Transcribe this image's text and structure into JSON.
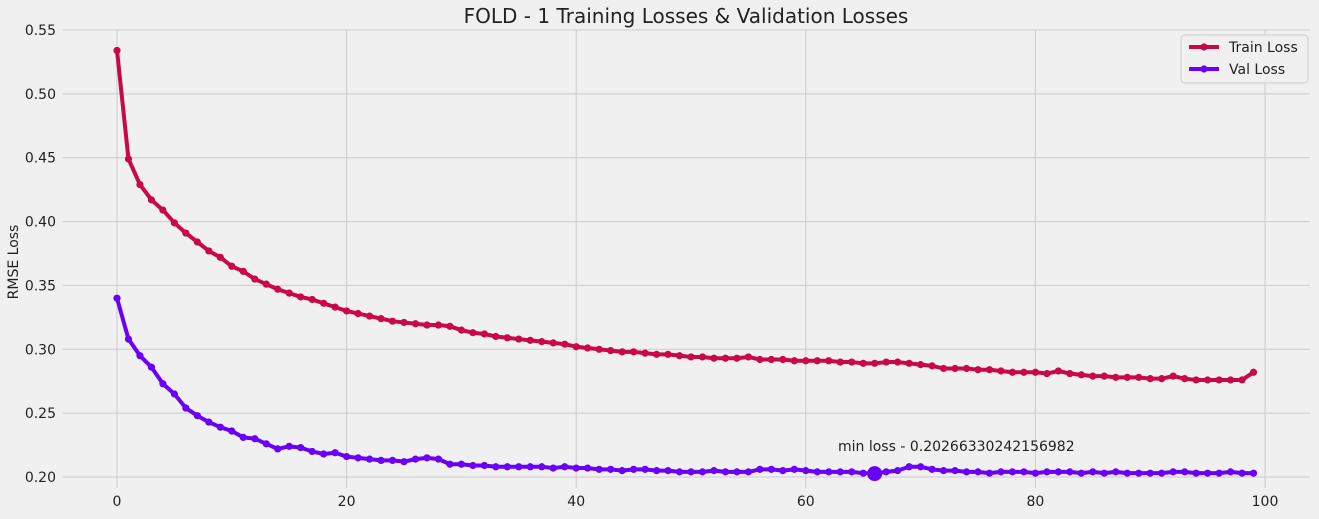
{
  "chart_data": {
    "type": "line",
    "title": "FOLD - 1 Training Losses & Validation Losses",
    "xlabel": "",
    "ylabel": "RMSE Loss",
    "xlim": [
      -5,
      104
    ],
    "ylim": [
      0.195,
      0.55
    ],
    "xticks": [
      0,
      20,
      40,
      60,
      80,
      100
    ],
    "yticks": [
      0.2,
      0.25,
      0.3,
      0.35,
      0.4,
      0.45,
      0.5,
      0.55
    ],
    "ytick_labels": [
      "0.20",
      "0.25",
      "0.30",
      "0.35",
      "0.40",
      "0.45",
      "0.50",
      "0.55"
    ],
    "grid": true,
    "legend": "top-right",
    "series": [
      {
        "name": "Train Loss",
        "color": "#c8084a",
        "values": [
          0.534,
          0.449,
          0.429,
          0.417,
          0.409,
          0.399,
          0.391,
          0.384,
          0.377,
          0.372,
          0.365,
          0.361,
          0.355,
          0.351,
          0.347,
          0.344,
          0.341,
          0.339,
          0.336,
          0.333,
          0.33,
          0.328,
          0.326,
          0.324,
          0.322,
          0.321,
          0.32,
          0.319,
          0.319,
          0.318,
          0.315,
          0.313,
          0.312,
          0.31,
          0.309,
          0.308,
          0.307,
          0.306,
          0.305,
          0.304,
          0.302,
          0.301,
          0.3,
          0.299,
          0.298,
          0.298,
          0.297,
          0.296,
          0.296,
          0.295,
          0.294,
          0.294,
          0.293,
          0.293,
          0.293,
          0.294,
          0.292,
          0.292,
          0.292,
          0.291,
          0.291,
          0.291,
          0.291,
          0.29,
          0.29,
          0.289,
          0.289,
          0.29,
          0.29,
          0.289,
          0.288,
          0.287,
          0.285,
          0.285,
          0.285,
          0.284,
          0.284,
          0.283,
          0.282,
          0.282,
          0.282,
          0.281,
          0.283,
          0.281,
          0.28,
          0.279,
          0.279,
          0.278,
          0.278,
          0.278,
          0.277,
          0.277,
          0.279,
          0.277,
          0.276,
          0.276,
          0.276,
          0.276,
          0.276,
          0.282
        ]
      },
      {
        "name": "Val Loss",
        "color": "#6a00f5",
        "values": [
          0.34,
          0.308,
          0.295,
          0.286,
          0.273,
          0.265,
          0.254,
          0.248,
          0.243,
          0.239,
          0.236,
          0.231,
          0.23,
          0.226,
          0.222,
          0.224,
          0.223,
          0.22,
          0.218,
          0.219,
          0.216,
          0.215,
          0.214,
          0.213,
          0.213,
          0.212,
          0.214,
          0.215,
          0.214,
          0.21,
          0.21,
          0.209,
          0.209,
          0.208,
          0.208,
          0.208,
          0.208,
          0.208,
          0.207,
          0.208,
          0.207,
          0.207,
          0.206,
          0.206,
          0.205,
          0.206,
          0.206,
          0.205,
          0.205,
          0.204,
          0.204,
          0.204,
          0.205,
          0.204,
          0.204,
          0.204,
          0.206,
          0.206,
          0.205,
          0.206,
          0.205,
          0.204,
          0.204,
          0.204,
          0.204,
          0.203,
          0.2027,
          0.204,
          0.205,
          0.208,
          0.208,
          0.206,
          0.205,
          0.205,
          0.204,
          0.204,
          0.203,
          0.204,
          0.204,
          0.204,
          0.203,
          0.204,
          0.204,
          0.204,
          0.203,
          0.204,
          0.203,
          0.204,
          0.203,
          0.203,
          0.203,
          0.203,
          0.204,
          0.204,
          0.203,
          0.203,
          0.203,
          0.204,
          0.203,
          0.203
        ]
      }
    ],
    "min_marker": {
      "x": 66,
      "y": 0.20266330242156982,
      "label": "min loss - 0.20266330242156982"
    }
  }
}
